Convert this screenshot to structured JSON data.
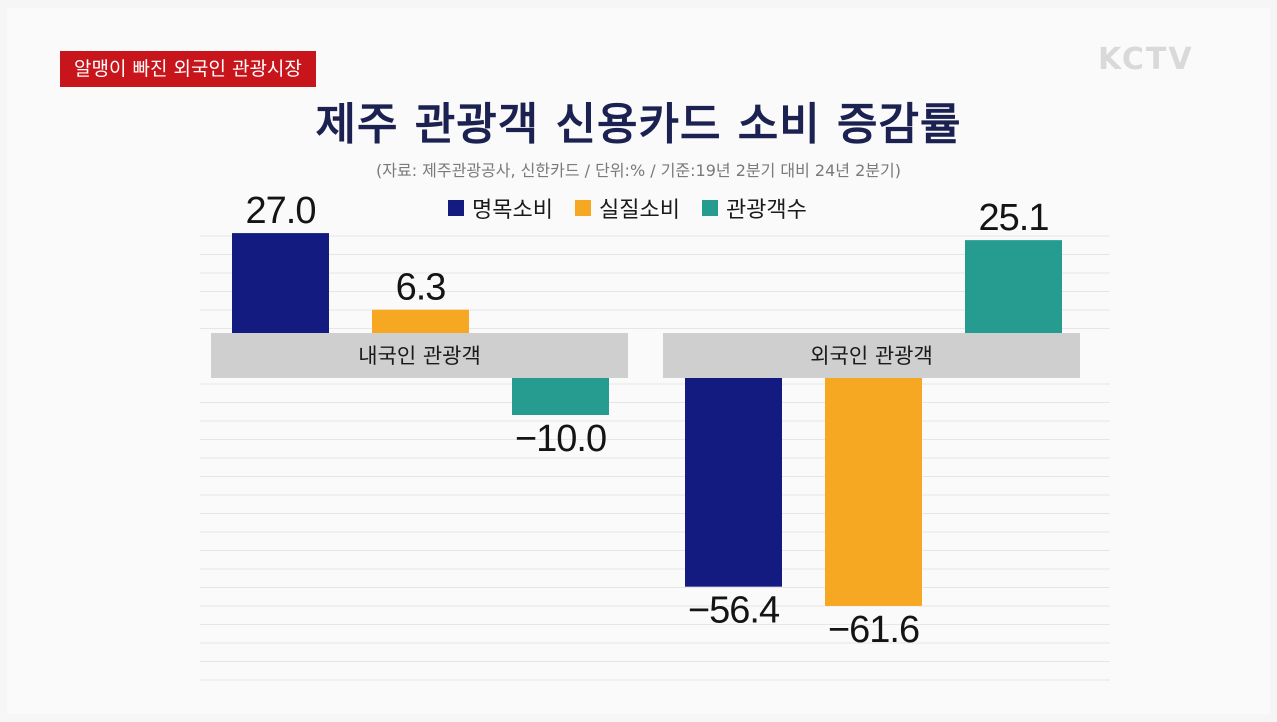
{
  "header": {
    "badge": "알맹이 빠진 외국인 관광시장",
    "logo": "KCTV"
  },
  "chart_data": {
    "type": "bar",
    "title": "제주 관광객 신용카드 소비 증감률",
    "subtitle": "(자료: 제주관광공사, 신한카드 / 단위:% / 기준:19년 2분기 대비 24년 2분기)",
    "categories": [
      "내국인 관광객",
      "외국인 관광객"
    ],
    "series": [
      {
        "name": "명목소비",
        "color": "#141b80",
        "values": [
          27.0,
          -56.4
        ],
        "labels": [
          "27.0",
          "−56.4"
        ]
      },
      {
        "name": "실질소비",
        "color": "#f7a823",
        "values": [
          6.3,
          -61.6
        ],
        "labels": [
          "6.3",
          "−61.6"
        ]
      },
      {
        "name": "관광객수",
        "color": "#259c8f",
        "values": [
          -10.0,
          25.1
        ],
        "labels": [
          "−10.0",
          "25.1"
        ]
      }
    ],
    "ylim": [
      -70,
      35
    ],
    "grid": true,
    "legend_position": "top-center"
  }
}
